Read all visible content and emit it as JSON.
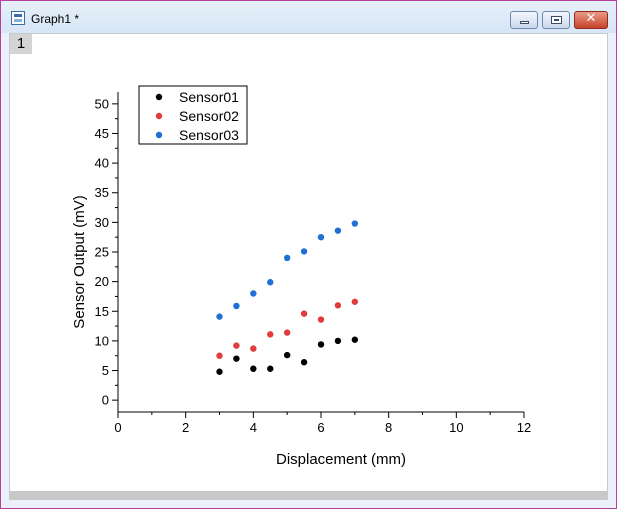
{
  "window": {
    "title": "Graph1 *"
  },
  "layer": {
    "label": "1"
  },
  "chart_data": {
    "type": "scatter",
    "xlabel": "Displacement (mm)",
    "ylabel": "Sensor Output (mV)",
    "xlim": [
      0,
      12
    ],
    "ylim": [
      -2,
      52
    ],
    "xticks": [
      0,
      2,
      4,
      6,
      8,
      10,
      12
    ],
    "yticks": [
      0,
      5,
      10,
      15,
      20,
      25,
      30,
      35,
      40,
      45,
      50
    ],
    "grid": false,
    "legend": "top-left",
    "x": [
      3,
      3.5,
      4,
      4.5,
      5,
      5.5,
      6,
      6.5,
      7
    ],
    "series": [
      {
        "name": "Sensor01",
        "color": "#000000",
        "values": [
          4.8,
          7.0,
          5.3,
          5.3,
          7.6,
          6.4,
          9.4,
          10.0,
          10.2
        ]
      },
      {
        "name": "Sensor02",
        "color": "#e03c3c",
        "values": [
          7.5,
          9.2,
          8.7,
          11.1,
          11.4,
          14.6,
          13.6,
          16.0,
          16.6
        ]
      },
      {
        "name": "Sensor03",
        "color": "#1f6fd6",
        "values": [
          14.1,
          15.9,
          18.0,
          19.9,
          24.0,
          25.1,
          27.5,
          28.6,
          29.8
        ]
      }
    ]
  }
}
